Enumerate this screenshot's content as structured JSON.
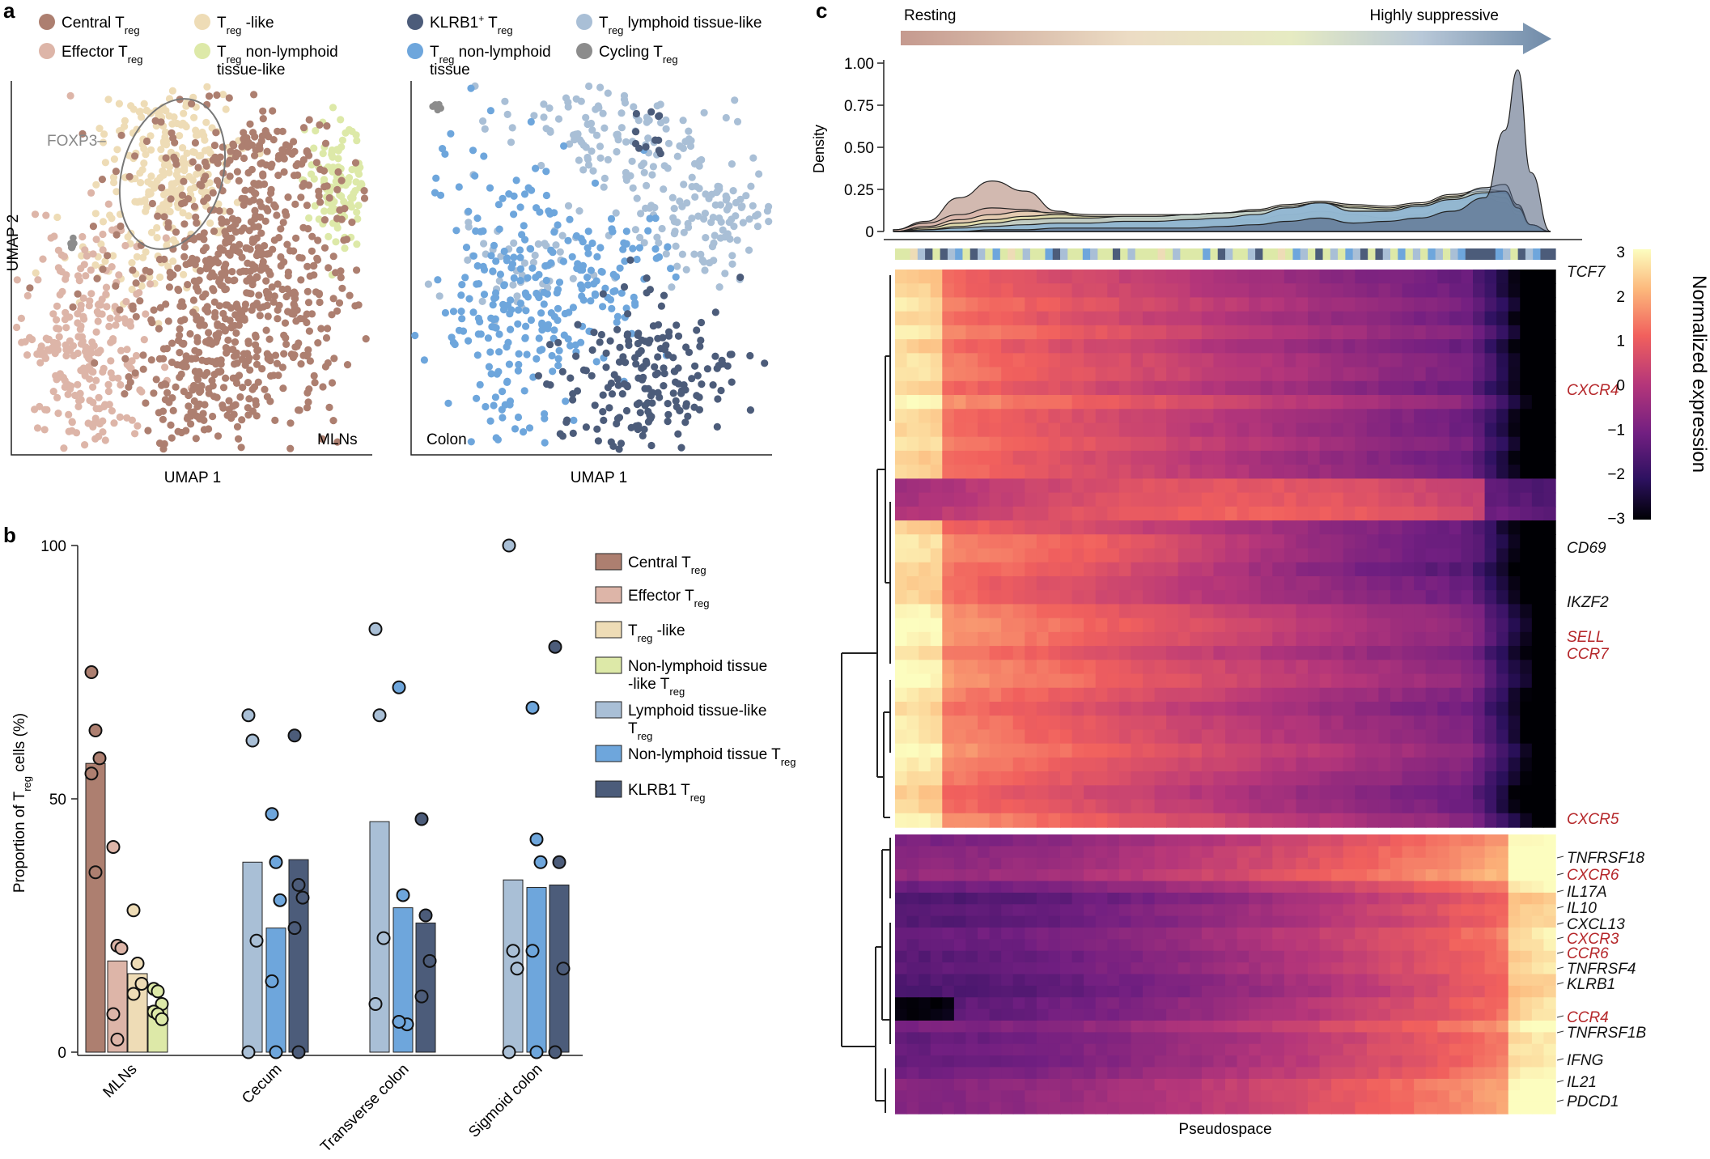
{
  "panel_labels": {
    "a": "a",
    "b": "b",
    "c": "c"
  },
  "colors": {
    "central": "#ad7f70",
    "effector": "#ddb5a8",
    "like": "#eedcb6",
    "nonlymph": "#dde9a8",
    "klrb1": "#4c5c7a",
    "lymphlike": "#a9bfd6",
    "nonlymphtissue": "#6ea6dc",
    "cycling": "#8c8c8c"
  },
  "panel_a": {
    "legend_left": [
      {
        "key": "central",
        "label": "Central T",
        "sub": "reg",
        "suffix": ""
      },
      {
        "key": "like",
        "label": "T",
        "sub": "reg",
        "suffix": " -like"
      },
      {
        "key": "effector",
        "label": "Effector T",
        "sub": "reg",
        "suffix": ""
      },
      {
        "key": "nonlymph",
        "label": "T",
        "sub": "reg",
        "suffix": " non-lymphoid",
        "line2": "tissue-like"
      }
    ],
    "legend_right": [
      {
        "key": "klrb1",
        "label": "KLRB1",
        "sup": "+",
        "tail": " T",
        "sub": "reg"
      },
      {
        "key": "lymphlike",
        "label": "T",
        "sub": "reg",
        "suffix": " lymphoid tissue-like"
      },
      {
        "key": "nonlymphtissue",
        "label": "T",
        "sub": "reg",
        "suffix": " non-lymphoid",
        "line2": "tissue"
      },
      {
        "key": "cycling",
        "label": "Cycling T",
        "sub": "reg",
        "suffix": ""
      }
    ],
    "ylabel": "UMAP 2",
    "xlabel_left": "UMAP 1",
    "xlabel_right": "UMAP 1",
    "foxp3_label": "FOXP3–",
    "left_tag": "MLNs",
    "right_tag": "Colon"
  },
  "chart_data": [
    {
      "type": "bar",
      "panel": "b",
      "ylabel": "Proportion of T",
      "ylabel_sub": "reg",
      "ylabel_tail": " cells (%)",
      "ylim": [
        0,
        100
      ],
      "yticks": [
        0,
        50,
        100
      ],
      "categories": [
        "MLNs",
        "Cecum",
        "Transverse colon",
        "Sigmoid colon"
      ],
      "series": [
        {
          "key": "central",
          "name": "Central T",
          "sub": "reg",
          "values": [
            57,
            0,
            0,
            0
          ]
        },
        {
          "key": "effector",
          "name": "Effector T",
          "sub": "reg",
          "values": [
            18,
            0,
            0,
            0
          ]
        },
        {
          "key": "like",
          "name": "T",
          "sub": "reg",
          "suffix": " -like",
          "values": [
            15.5,
            0,
            0,
            0
          ]
        },
        {
          "key": "nonlymph",
          "name": "Non-lymphoid tissue",
          "line2": "-like T",
          "sub": "reg",
          "values": [
            9,
            0,
            0,
            0
          ]
        },
        {
          "key": "lymphlike",
          "name": "Lymphoid tissue-like",
          "line2": "T",
          "sub": "reg",
          "values": [
            0,
            37.5,
            45.5,
            34
          ]
        },
        {
          "key": "nonlymphtissue",
          "name": "Non-lymphoid tissue T",
          "sub": "reg",
          "values": [
            0,
            24.5,
            28.5,
            32.5
          ]
        },
        {
          "key": "klrb1",
          "name": "KLRB1 T",
          "sub": "reg",
          "values": [
            0,
            38,
            25.5,
            33
          ]
        }
      ],
      "points": {
        "MLNs": {
          "central": [
            75,
            63.5,
            58,
            55,
            35.5
          ],
          "effector": [
            40.5,
            21,
            20.5,
            7.5,
            2.5
          ],
          "like": [
            28,
            17.5,
            13.5,
            11.5
          ],
          "nonlymph": [
            12.5,
            12,
            9.5,
            8,
            7.5,
            6.5
          ]
        },
        "Cecum": {
          "lymphlike": [
            66.5,
            61.5,
            22,
            0
          ],
          "nonlymphtissue": [
            47,
            37.5,
            30,
            14,
            0
          ],
          "klrb1": [
            62.5,
            33,
            30.5,
            24.5,
            0
          ]
        },
        "Transverse colon": {
          "lymphlike": [
            83.5,
            66.5,
            22.5,
            9.5
          ],
          "nonlymphtissue": [
            72,
            31,
            5.5,
            6
          ],
          "klrb1": [
            46,
            27,
            18,
            11
          ]
        },
        "Sigmoid colon": {
          "lymphlike": [
            100,
            20,
            16.5,
            0
          ],
          "nonlymphtissue": [
            68,
            42,
            37.5,
            20,
            0
          ],
          "klrb1": [
            80,
            37.5,
            16.5,
            0
          ]
        }
      }
    },
    {
      "type": "area",
      "panel": "c",
      "ylabel": "Density",
      "ylim": [
        0,
        1.0
      ],
      "yticks": [
        0,
        0.25,
        0.5,
        0.75,
        1.0
      ],
      "ytick_labels": [
        "0",
        "0.25",
        "0.50",
        "0.75",
        "1.00"
      ],
      "arrow_left": "Resting",
      "arrow_right": "Highly suppressive",
      "xlabel": "Pseudospace",
      "x": [
        0,
        0.05,
        0.1,
        0.15,
        0.2,
        0.25,
        0.3,
        0.35,
        0.4,
        0.45,
        0.5,
        0.55,
        0.6,
        0.65,
        0.7,
        0.75,
        0.8,
        0.85,
        0.9,
        0.93,
        0.95,
        0.97,
        1.0
      ],
      "series": [
        {
          "key": "central",
          "values": [
            0.01,
            0.06,
            0.2,
            0.3,
            0.24,
            0.12,
            0.07,
            0.06,
            0.06,
            0.06,
            0.07,
            0.07,
            0.1,
            0.12,
            0.1,
            0.08,
            0.1,
            0.18,
            0.2,
            0.17,
            0.1,
            0.03,
            0.0
          ]
        },
        {
          "key": "effector",
          "values": [
            0.01,
            0.05,
            0.1,
            0.14,
            0.13,
            0.1,
            0.09,
            0.08,
            0.08,
            0.08,
            0.1,
            0.1,
            0.14,
            0.17,
            0.14,
            0.12,
            0.14,
            0.2,
            0.22,
            0.2,
            0.12,
            0.03,
            0.0
          ]
        },
        {
          "key": "like",
          "values": [
            0.0,
            0.03,
            0.07,
            0.1,
            0.12,
            0.11,
            0.1,
            0.1,
            0.1,
            0.1,
            0.11,
            0.13,
            0.16,
            0.18,
            0.16,
            0.15,
            0.17,
            0.22,
            0.25,
            0.24,
            0.15,
            0.04,
            0.0
          ]
        },
        {
          "key": "nonlymph",
          "values": [
            0.0,
            0.02,
            0.05,
            0.07,
            0.09,
            0.1,
            0.09,
            0.09,
            0.09,
            0.1,
            0.11,
            0.12,
            0.15,
            0.17,
            0.15,
            0.14,
            0.16,
            0.21,
            0.24,
            0.23,
            0.14,
            0.04,
            0.0
          ]
        },
        {
          "key": "lymphlike",
          "values": [
            0.0,
            0.01,
            0.03,
            0.05,
            0.07,
            0.08,
            0.08,
            0.09,
            0.09,
            0.1,
            0.11,
            0.12,
            0.15,
            0.17,
            0.14,
            0.13,
            0.16,
            0.2,
            0.26,
            0.28,
            0.16,
            0.04,
            0.0
          ]
        },
        {
          "key": "nonlymphtissue",
          "values": [
            0.0,
            0.01,
            0.02,
            0.03,
            0.04,
            0.05,
            0.05,
            0.06,
            0.06,
            0.07,
            0.08,
            0.1,
            0.14,
            0.17,
            0.12,
            0.12,
            0.15,
            0.19,
            0.23,
            0.24,
            0.14,
            0.04,
            0.0
          ]
        },
        {
          "key": "klrb1",
          "values": [
            0.0,
            0.0,
            0.0,
            0.01,
            0.01,
            0.02,
            0.02,
            0.02,
            0.02,
            0.02,
            0.03,
            0.04,
            0.06,
            0.08,
            0.05,
            0.06,
            0.08,
            0.12,
            0.2,
            0.6,
            0.96,
            0.35,
            0.0
          ]
        }
      ],
      "colorbar": {
        "label": "Normalized expression",
        "range": [
          -3,
          3
        ],
        "ticks": [
          3,
          2,
          1,
          0,
          -1,
          -2,
          -3
        ],
        "tick_labels": [
          "3",
          "2",
          "1",
          "0",
          "−1",
          "−2",
          "−3"
        ]
      },
      "genes": [
        {
          "name": "TCF7",
          "color": "#111111"
        },
        {
          "name": "CXCR4",
          "color": "#b5272a"
        },
        {
          "name": "CD69",
          "color": "#111111"
        },
        {
          "name": "IKZF2",
          "color": "#111111"
        },
        {
          "name": "SELL",
          "color": "#b5272a"
        },
        {
          "name": "CCR7",
          "color": "#b5272a"
        },
        {
          "name": "CXCR5",
          "color": "#b5272a"
        },
        {
          "name": "TNFRSF18",
          "color": "#111111"
        },
        {
          "name": "CXCR6",
          "color": "#b5272a"
        },
        {
          "name": "IL17A",
          "color": "#111111"
        },
        {
          "name": "IL10",
          "color": "#111111"
        },
        {
          "name": "CXCL13",
          "color": "#111111"
        },
        {
          "name": "CXCR3",
          "color": "#b5272a"
        },
        {
          "name": "CCR6",
          "color": "#b5272a"
        },
        {
          "name": "TNFRSF4",
          "color": "#111111"
        },
        {
          "name": "KLRB1",
          "color": "#111111"
        },
        {
          "name": "CCR4",
          "color": "#b5272a"
        },
        {
          "name": "TNFRSF1B",
          "color": "#111111"
        },
        {
          "name": "IFNG",
          "color": "#111111"
        },
        {
          "name": "IL21",
          "color": "#111111"
        },
        {
          "name": "PDCD1",
          "color": "#111111"
        }
      ]
    }
  ]
}
